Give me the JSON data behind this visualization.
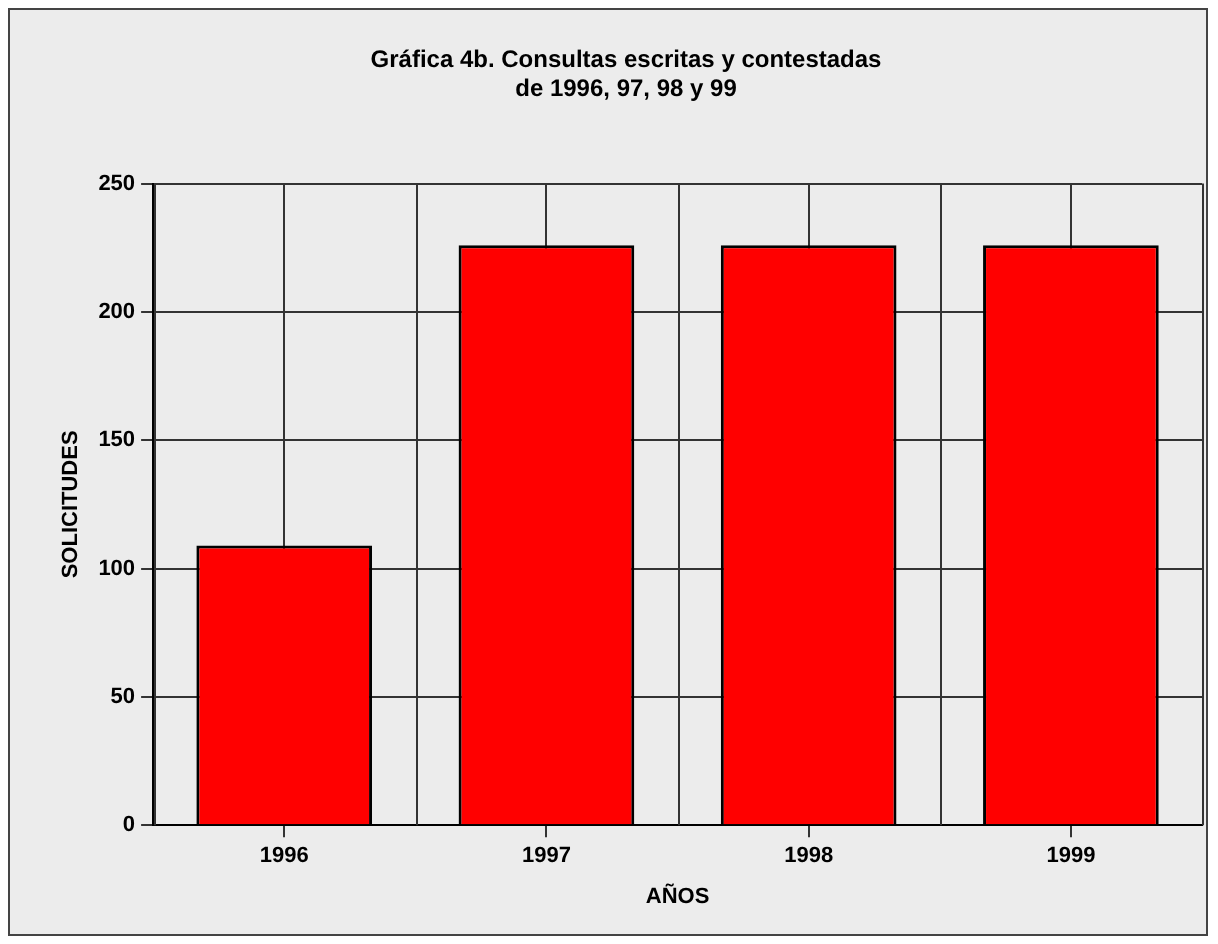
{
  "chart_data": {
    "type": "bar",
    "title": "Gráfica 4b. Consultas escritas y contestadas\nde 1996, 97, 98 y 99",
    "xlabel": "AÑOS",
    "ylabel": "SOLICITUDES",
    "categories": [
      "1996",
      "1997",
      "1998",
      "1999"
    ],
    "values": [
      109,
      226,
      226,
      226
    ],
    "color": "#ff0000",
    "ylim": [
      0,
      250
    ],
    "yticks": [
      0,
      50,
      100,
      150,
      200,
      250
    ],
    "grid": true,
    "legend": false
  }
}
